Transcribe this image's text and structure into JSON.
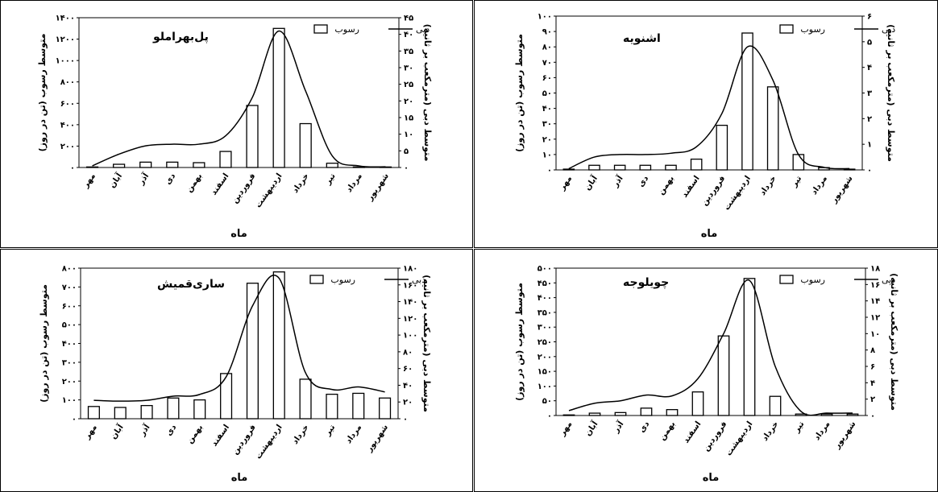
{
  "chart_data": [
    {
      "type": "bar",
      "title": "پل‌بهراملو",
      "categories": [
        "مهر",
        "آبان",
        "آذر",
        "دی",
        "بهمن",
        "اسفند",
        "فروردین",
        "اردیبهشت",
        "خرداد",
        "تیر",
        "مرداد",
        "شهریور"
      ],
      "xlabel": "ماه",
      "ylabel_left": "متوسط رسوب (تن در روز)",
      "ylabel_right": "متوسط دبی (مترمکعب بر ثانیه)",
      "ylim_left": [
        0,
        1400
      ],
      "ylim_right": [
        0,
        45
      ],
      "ticks_left": [
        "۰",
        "۲۰۰",
        "۴۰۰",
        "۶۰۰",
        "۸۰۰",
        "۱۰۰۰",
        "۱۲۰۰",
        "۱۴۰۰"
      ],
      "ticks_right": [
        "۰",
        "۵",
        "۱۰",
        "۱۵",
        "۲۰",
        "۲۵",
        "۳۰",
        "۳۵",
        "۴۰",
        "۴۵"
      ],
      "series": [
        {
          "name": "رسوب",
          "type": "bar",
          "axis": "left",
          "values": [
            5,
            30,
            50,
            50,
            45,
            150,
            580,
            1300,
            410,
            40,
            5,
            5
          ]
        },
        {
          "name": "دبی",
          "type": "line",
          "axis": "right",
          "values": [
            0.5,
            4,
            6.5,
            7,
            7,
            9.5,
            21,
            41,
            23,
            3.5,
            0.5,
            0.2
          ]
        }
      ],
      "legend": "top-right"
    },
    {
      "type": "bar",
      "title": "اشنویه",
      "categories": [
        "مهر",
        "آبان",
        "آذر",
        "دی",
        "بهمن",
        "اسفند",
        "فروردین",
        "اردیبهشت",
        "خرداد",
        "تیر",
        "مرداد",
        "شهریور"
      ],
      "xlabel": "ماه",
      "ylabel_left": "متوسط رسوب (تن در روز)",
      "ylabel_right": "متوسط دبی (مترمکعب بر ثانیه)",
      "ylim_left": [
        0,
        100
      ],
      "ylim_right": [
        0,
        6
      ],
      "ticks_left": [
        "۰",
        "۱۰",
        "۲۰",
        "۳۰",
        "۴۰",
        "۵۰",
        "۶۰",
        "۷۰",
        "۸۰",
        "۹۰",
        "۱۰۰"
      ],
      "ticks_right": [
        "۰",
        "۱",
        "۲",
        "۳",
        "۴",
        "۵",
        "۶"
      ],
      "series": [
        {
          "name": "رسوب",
          "type": "bar",
          "axis": "left",
          "values": [
            0.5,
            3,
            3,
            3,
            3,
            7,
            29,
            89,
            54,
            10,
            1.5,
            0.5
          ]
        },
        {
          "name": "دبی",
          "type": "line",
          "axis": "right",
          "values": [
            0.05,
            0.5,
            0.6,
            0.6,
            0.65,
            0.9,
            2.2,
            4.8,
            3.5,
            0.6,
            0.1,
            0.05
          ]
        }
      ],
      "legend": "top-right"
    },
    {
      "type": "bar",
      "title": "ساری‌قمیش",
      "categories": [
        "مهر",
        "آبان",
        "آذر",
        "دی",
        "بهمن",
        "اسفند",
        "فروردین",
        "اردیبهشت",
        "خرداد",
        "تیر",
        "مرداد",
        "شهریور"
      ],
      "xlabel": "ماه",
      "ylabel_left": "متوسط رسوب (تن در روز)",
      "ylabel_right": "متوسط دبی (مترمکعب بر ثانیه)",
      "ylim_left": [
        0,
        800
      ],
      "ylim_right": [
        0,
        180
      ],
      "ticks_left": [
        "۰",
        "۱۰۰",
        "۲۰۰",
        "۳۰۰",
        "۴۰۰",
        "۵۰۰",
        "۶۰۰",
        "۷۰۰",
        "۸۰۰"
      ],
      "ticks_right": [
        "۰",
        "۲۰",
        "۴۰",
        "۶۰",
        "۸۰",
        "۱۰۰",
        "۱۲۰",
        "۱۴۰",
        "۱۶۰",
        "۱۸۰"
      ],
      "series": [
        {
          "name": "رسوب",
          "type": "bar",
          "axis": "left",
          "values": [
            65,
            60,
            70,
            110,
            100,
            240,
            720,
            780,
            210,
            130,
            135,
            110
          ]
        },
        {
          "name": "دبی",
          "type": "line",
          "axis": "right",
          "values": [
            22,
            21,
            22,
            27,
            29,
            50,
            135,
            168,
            55,
            35,
            38,
            32
          ]
        }
      ],
      "legend": "top-right"
    },
    {
      "type": "bar",
      "title": "چویلوجه",
      "categories": [
        "مهر",
        "آبان",
        "آذر",
        "دی",
        "بهمن",
        "اسفند",
        "فروردین",
        "اردیبهشت",
        "خرداد",
        "تیر",
        "مرداد",
        "شهریور"
      ],
      "xlabel": "ماه",
      "ylabel_left": "متوسط رسوب (تن در روز)",
      "ylabel_right": "متوسط دبی (مترمکعب بر ثانیه)",
      "ylim_left": [
        0,
        500
      ],
      "ylim_right": [
        0,
        18
      ],
      "ticks_left": [
        "۰",
        "۵۰",
        "۱۰۰",
        "۱۵۰",
        "۲۰۰",
        "۲۵۰",
        "۳۰۰",
        "۳۵۰",
        "۴۰۰",
        "۴۵۰",
        "۵۰۰"
      ],
      "ticks_right": [
        "۰",
        "۲",
        "۴",
        "۶",
        "۸",
        "۱۰",
        "۱۲",
        "۱۴",
        "۱۶",
        "۱۸"
      ],
      "series": [
        {
          "name": "رسوب",
          "type": "bar",
          "axis": "left",
          "values": [
            2,
            8,
            10,
            25,
            20,
            80,
            270,
            465,
            65,
            5,
            5,
            5
          ]
        },
        {
          "name": "دبی",
          "type": "line",
          "axis": "right",
          "values": [
            0.6,
            1.5,
            1.8,
            2.5,
            2.4,
            4.5,
            10,
            16.5,
            6,
            0.5,
            0.3,
            0.3
          ]
        }
      ],
      "legend": "top-right"
    }
  ]
}
